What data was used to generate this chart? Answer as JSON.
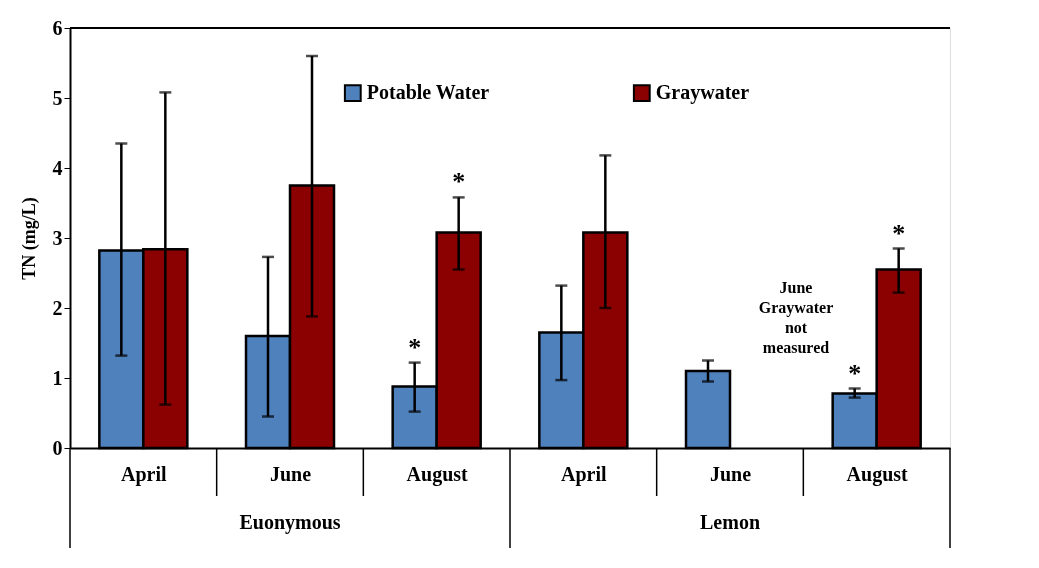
{
  "chart_data": {
    "type": "bar",
    "ylabel": "TN (mg/L)",
    "categories": [
      "April",
      "June",
      "August",
      "April",
      "June",
      "August"
    ],
    "series": [
      {
        "name": "Potable Water",
        "color": "#4f81bd",
        "values": [
          2.82,
          1.6,
          0.88,
          1.65,
          1.1,
          0.78
        ],
        "errors": [
          [
            1.32,
            4.35
          ],
          [
            0.45,
            2.73
          ],
          [
            0.52,
            1.22
          ],
          [
            0.97,
            2.32
          ],
          [
            0.95,
            1.25
          ],
          [
            0.72,
            0.85
          ]
        ],
        "value_labels": [
          null,
          null,
          "*",
          null,
          null,
          "*"
        ]
      },
      {
        "name": "Graywater",
        "color": "#8b0000",
        "values": [
          2.84,
          3.75,
          3.08,
          3.08,
          null,
          2.55
        ],
        "errors": [
          [
            0.62,
            5.08
          ],
          [
            1.88,
            5.6
          ],
          [
            2.55,
            3.58
          ],
          [
            2.0,
            4.18
          ],
          null,
          [
            2.22,
            2.85
          ]
        ],
        "value_labels": [
          null,
          null,
          "*",
          null,
          null,
          "*"
        ]
      }
    ],
    "ylim": [
      0,
      6
    ],
    "yticks": [
      0,
      1,
      2,
      3,
      4,
      5,
      6
    ],
    "grid": false,
    "legend": "top",
    "annotations": [
      "Euonymous",
      "Lemon",
      "June Graywater not measured"
    ]
  }
}
